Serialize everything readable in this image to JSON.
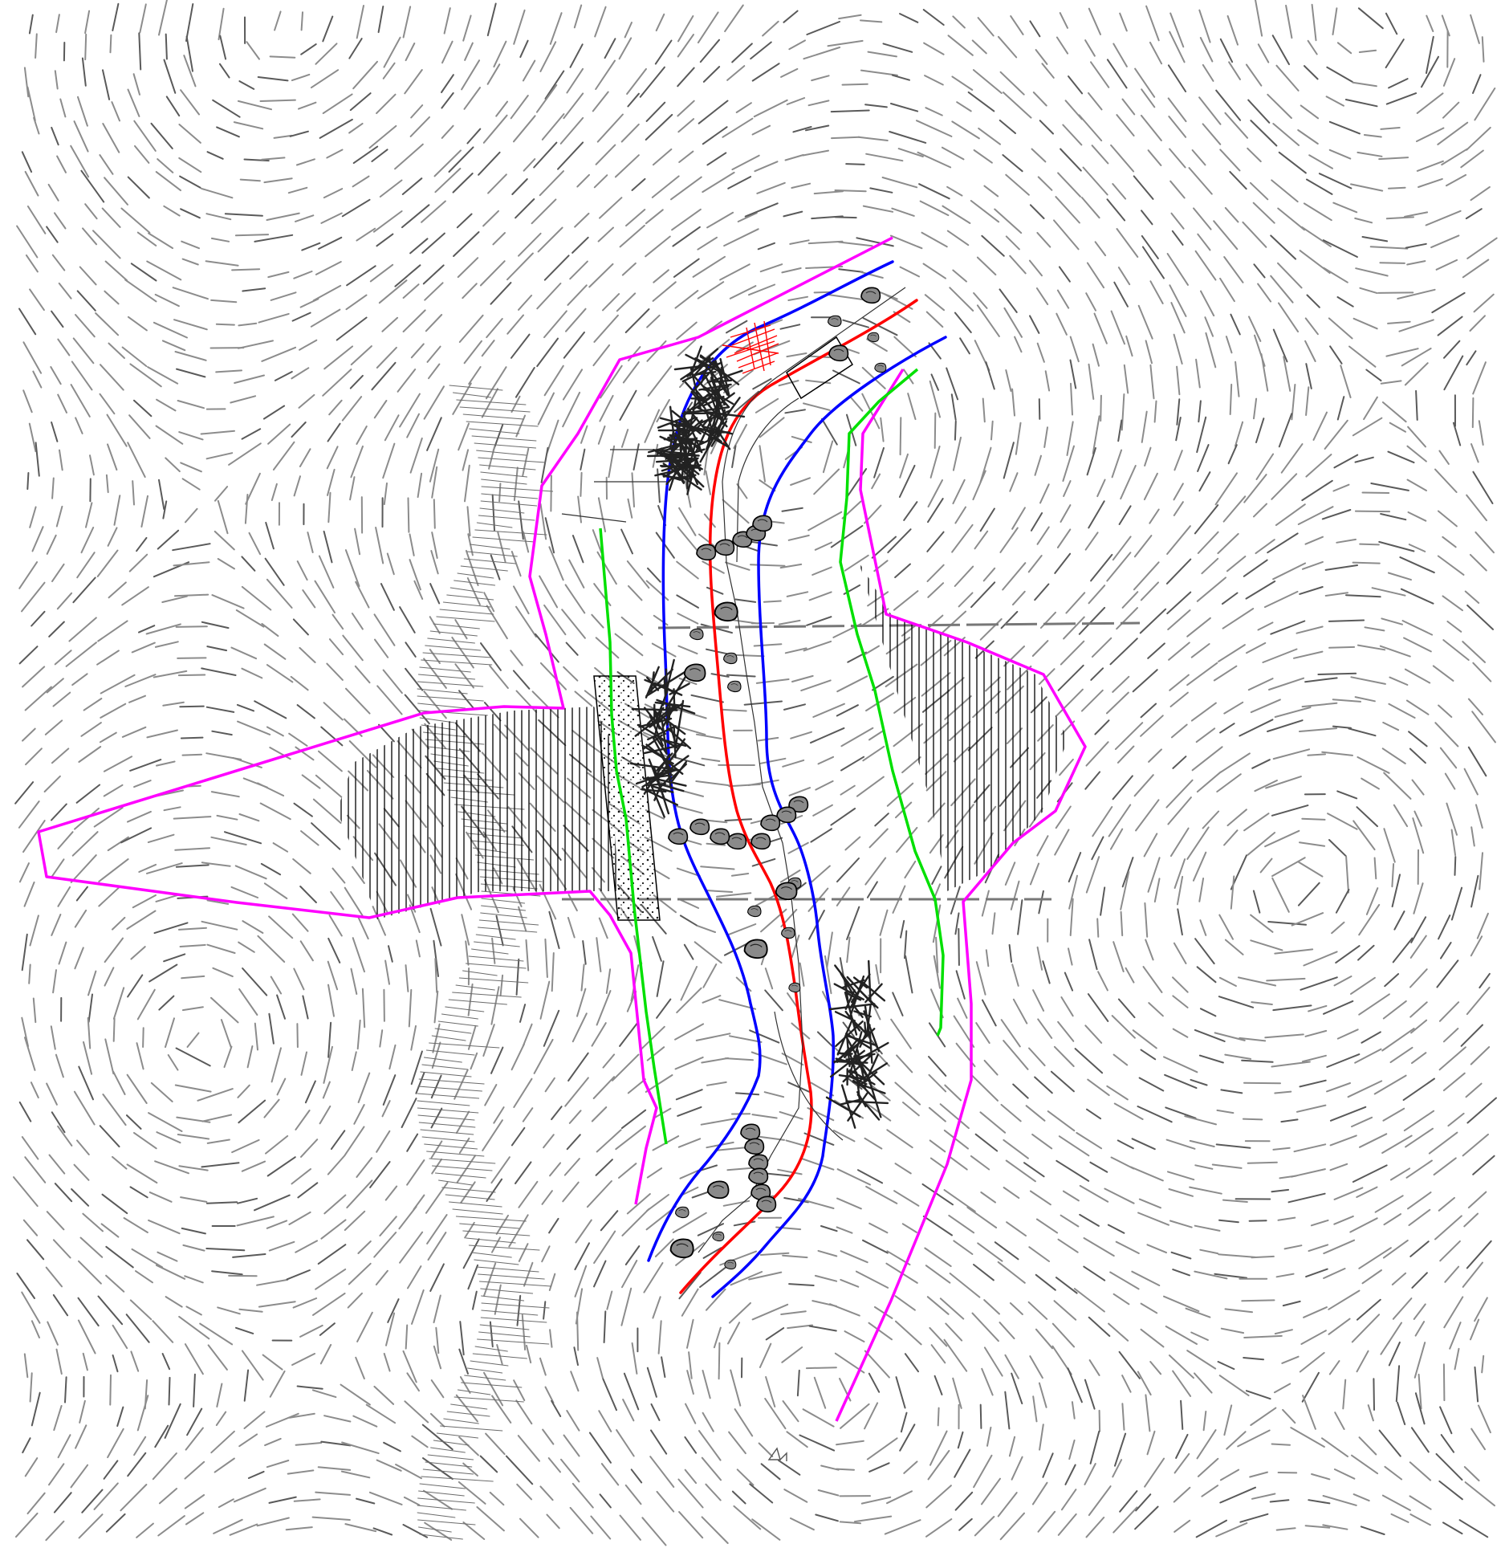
{
  "drawing": {
    "type": "stream-restoration-plan",
    "background": "#ffffff",
    "contour_color": "#8c8c8c",
    "contour_dark": "#5a5a5a",
    "line_colors": {
      "project_boundary": "#ff00ff",
      "stream_centerline": "#ff0000",
      "top_of_bank": "#0000ff",
      "buffer_line": "#00e000",
      "debris_hatch": "#ff0000",
      "hatch": "#000000",
      "boulder_fill": "#8a8a8a"
    },
    "icons": [
      "boulder-icon",
      "log-jam-icon",
      "culvert-crossing-icon",
      "north-arrow-icon"
    ]
  }
}
